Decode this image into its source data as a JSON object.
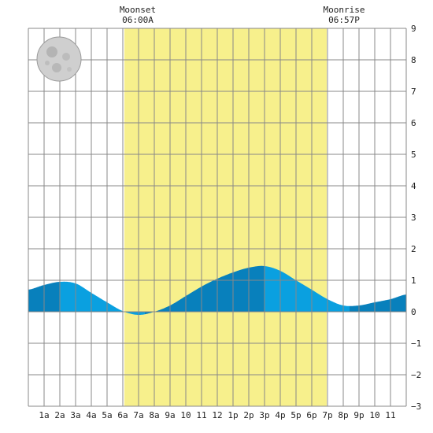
{
  "chart_data": {
    "type": "area",
    "moonset": {
      "label": "Moonset",
      "time": "06:00A"
    },
    "moonrise": {
      "label": "Moonrise",
      "time": "06:57P"
    },
    "daylight_span_hours": [
      6.1,
      18.95
    ],
    "x_tick_labels": [
      "1a",
      "2a",
      "3a",
      "4a",
      "5a",
      "6a",
      "7a",
      "8a",
      "9a",
      "10",
      "11",
      "12",
      "1p",
      "2p",
      "3p",
      "4p",
      "5p",
      "6p",
      "7p",
      "8p",
      "9p",
      "10",
      "11"
    ],
    "x_range_hours": [
      0,
      24
    ],
    "y_range": [
      -3,
      9
    ],
    "y_tick_labels": [
      "9",
      "8",
      "7",
      "6",
      "5",
      "4",
      "3",
      "2",
      "1",
      "0",
      "−1",
      "−2",
      "−3"
    ],
    "tide": {
      "hours": [
        0,
        1,
        2,
        3,
        4,
        5,
        6,
        7,
        8,
        9,
        10,
        11,
        12,
        13,
        14,
        15,
        16,
        17,
        18,
        19,
        20,
        21,
        22,
        23,
        24
      ],
      "heights": [
        0.7,
        0.85,
        0.95,
        0.9,
        0.6,
        0.3,
        0.02,
        -0.1,
        0.0,
        0.2,
        0.5,
        0.8,
        1.05,
        1.25,
        1.4,
        1.45,
        1.3,
        1.0,
        0.7,
        0.4,
        0.2,
        0.2,
        0.3,
        0.4,
        0.55
      ]
    },
    "tide_events_hours": [
      2.0,
      7.4,
      15.0,
      20.4
    ],
    "colors": {
      "daylight": "#f7f08c",
      "tide_light": "#0aa0e0",
      "tide_dark": "#0880bc",
      "grid": "#888888"
    },
    "moon_phase": "full",
    "grid": true
  }
}
